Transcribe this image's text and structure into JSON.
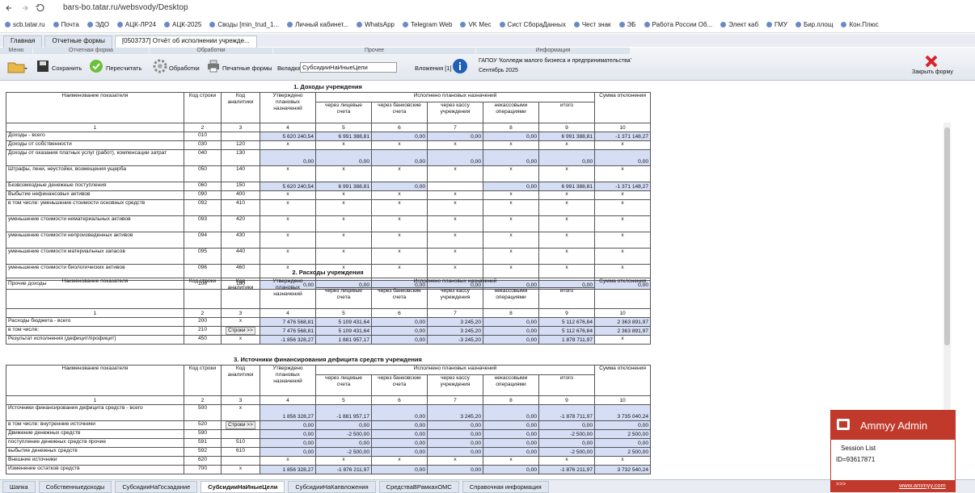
{
  "browser": {
    "url": "bars-bo.tatar.ru/websvody/Desktop",
    "bookmarks": [
      "scb.tatar.ru",
      "Почта",
      "ЭДО",
      "АЦК-ЛР24",
      "АЦК-2025",
      "Своды [min_trud_1...",
      "Личный кабинет...",
      "WhatsApp",
      "Telegram Web",
      "VK Мес",
      "Сист СбораДанных",
      "Чест знак",
      "ЭБ",
      "Работа России Об...",
      "Элект каб",
      "ГМУ",
      "Бир.площ",
      "Кон.Плюс"
    ]
  },
  "app_tabs": [
    "Главная",
    "Отчетные формы",
    "[0503737] Отчёт об исполнении учрежде..."
  ],
  "ribbon": {
    "groups": [
      "Меню",
      "Отчетная форма",
      "Обработки",
      "Прочее",
      "Информация"
    ],
    "save": "Сохранить",
    "recalc": "Пересчитать",
    "processing": "Обработки",
    "print": "Печатные формы",
    "tab_label": "Вкладка",
    "tab_value": "СубсидииНаИныеЦели",
    "attachments": "Вложения [1]",
    "org": "ГАПОУ 'Колледж малого бизнеса и предпринимательства'",
    "period": "Сентябрь 2025",
    "close": "Закрыть форму"
  },
  "table_header": {
    "name": "Наименование показателя",
    "code": "Код строки",
    "analytics": "Код аналитики",
    "approved": "Утверждено плановых назначений",
    "executed": "Исполнено плановых назначений",
    "sub": [
      "через лицевые счета",
      "через банковские счета",
      "через кассу учреждения",
      "некассовыми операциями",
      "итого"
    ],
    "deviation": "Сумма отклонения",
    "numbers": [
      1,
      2,
      3,
      4,
      5,
      6,
      7,
      8,
      9,
      10
    ]
  },
  "sections": [
    {
      "title": "1. Доходы учреждения",
      "rows": [
        {
          "name": "Доходы - всего",
          "code": "010",
          "analytics": null,
          "cells": [
            "5 620 240,54",
            "6 991 388,81",
            "0,00",
            "0,00",
            "0,00",
            "6 991 388,81",
            "-1 371 148,27"
          ]
        },
        {
          "name": "Доходы от собственности",
          "code": "030",
          "analytics": "120",
          "cells": [
            "x",
            "x",
            "x",
            "x",
            "x",
            "x",
            "x"
          ]
        },
        {
          "name": "Доходы от оказания платных услуг (работ), компенсации затрат",
          "code": "040",
          "analytics": "130",
          "cells": [
            "0,00",
            "0,00",
            "0,00",
            "0,00",
            "0,00",
            "0,00",
            "0,00"
          ]
        },
        {
          "name": "Штрафы, пени, неустойки, возмещения ущерба",
          "code": "050",
          "analytics": "140",
          "cells": [
            "x",
            "x",
            "x",
            "x",
            "x",
            "x",
            "x"
          ]
        },
        {
          "name": "Безвозмездные денежные поступления",
          "code": "060",
          "analytics": "150",
          "cells": [
            "5 620 240,54",
            "6 991 388,81",
            "0,00",
            null,
            "0,00",
            "6 991 388,81",
            "-1 371 148,27"
          ]
        },
        {
          "name": "Выбытие нефинансовых активов",
          "code": "090",
          "analytics": "400",
          "cells": [
            "x",
            "x",
            "x",
            "x",
            "x",
            "x",
            "x"
          ]
        },
        {
          "name": "в том числе: уменьшение стоимости основных средств",
          "code": "092",
          "analytics": "410",
          "cells": [
            "x",
            "x",
            "x",
            "x",
            "x",
            "x",
            "x"
          ]
        },
        {
          "name": "уменьшение стоимости нематериальных активов",
          "code": "093",
          "analytics": "420",
          "cells": [
            "x",
            "x",
            "x",
            "x",
            "x",
            "x",
            "x"
          ]
        },
        {
          "name": "уменьшение стоимости непроизведенных активов",
          "code": "094",
          "analytics": "430",
          "cells": [
            "x",
            "x",
            "x",
            "x",
            "x",
            "x",
            "x"
          ]
        },
        {
          "name": "уменьшение стоимости материальных запасов",
          "code": "095",
          "analytics": "440",
          "cells": [
            "x",
            "x",
            "x",
            "x",
            "x",
            "x",
            "x"
          ]
        },
        {
          "name": "уменьшение стоимости биологических активов",
          "code": "096",
          "analytics": "460",
          "cells": [
            "x",
            "x",
            "x",
            "x",
            "x",
            "x",
            "x"
          ]
        },
        {
          "name": "Прочие доходы",
          "code": "100",
          "analytics": "180",
          "cells": [
            "0,00",
            "0,00",
            "0,00",
            "0,00",
            "0,00",
            "0,00",
            "0,00"
          ]
        }
      ]
    },
    {
      "title": "2. Расходы учреждения",
      "rows": [
        {
          "name": "Расходы бюджета - всего",
          "code": "200",
          "analytics": "x",
          "cells": [
            "7 476 568,81",
            "5 109 431,64",
            "0,00",
            "3 245,20",
            "0,00",
            "5 112 676,84",
            "2 363 891,97"
          ]
        },
        {
          "name": "в том числе:",
          "code": "210",
          "button": "Строки >>",
          "cells": [
            "7 476 568,81",
            "5 109 431,64",
            "0,00",
            "3 245,20",
            "0,00",
            "5 112 676,84",
            "2 363 891,97"
          ]
        },
        {
          "name": "Результат исполнения (дефицит/профицит)",
          "code": "450",
          "analytics": "x",
          "cells": [
            "-1 856 328,27",
            "1 881 957,17",
            "0,00",
            "-3 245,20",
            "0,00",
            "1 878 711,97",
            "x"
          ]
        }
      ]
    },
    {
      "title": "3. Источники финансирования дефицита средств учреждения",
      "rows": [
        {
          "name": "Источники финансирования дефицита средств - всего",
          "code": "500",
          "analytics": "x",
          "cells": [
            "1 856 328,27",
            "-1 881 957,17",
            "0,00",
            "3 245,20",
            "0,00",
            "-1 878 711,97",
            "3 735 040,24"
          ]
        },
        {
          "name": "в том числе: внутренние источники",
          "code": "520",
          "button": "Строки >>",
          "cells": [
            "0,00",
            "0,00",
            "0,00",
            "0,00",
            "0,00",
            "0,00",
            "0,00"
          ]
        },
        {
          "name": "Движение денежных средств",
          "code": "590",
          "analytics": null,
          "cells": [
            "0,00",
            "-2 500,00",
            "0,00",
            "0,00",
            "0,00",
            "-2 500,00",
            "2 500,00"
          ]
        },
        {
          "name": "поступление денежных средств прочие",
          "code": "591",
          "analytics": "510",
          "cells": [
            "0,00",
            "0,00",
            "0,00",
            "0,00",
            "0,00",
            "0,00",
            "0,00"
          ]
        },
        {
          "name": "выбытие денежных средств",
          "code": "592",
          "analytics": "610",
          "cells": [
            "0,00",
            "-2 500,00",
            "0,00",
            "0,00",
            "0,00",
            "-2 500,00",
            "2 500,00"
          ]
        },
        {
          "name": "Внешние источники",
          "code": "620",
          "analytics": null,
          "cells": [
            "x",
            "x",
            "x",
            "x",
            "x",
            "x",
            "x"
          ]
        },
        {
          "name": "Изменение остатков средств",
          "code": "700",
          "analytics": "x",
          "cells": [
            "1 856 328,27",
            "-1 876 211,97",
            "0,00",
            "0,00",
            "0,00",
            "-1 876 211,97",
            "3 732 540,24"
          ]
        }
      ]
    }
  ],
  "bottom_tabs": [
    "Шапка",
    "Собственныедоходы",
    "СубсидииНаГосзадание",
    "СубсидииНаИныеЦели",
    "СубсидииНаКапвложения",
    "СредстваВРамкахОМС",
    "Справочная информация"
  ],
  "ammyy": {
    "title": "Ammyy Admin",
    "session": "Session List",
    "id": "ID=93617871",
    "more": ">>>",
    "link": "www.ammyy.com"
  }
}
